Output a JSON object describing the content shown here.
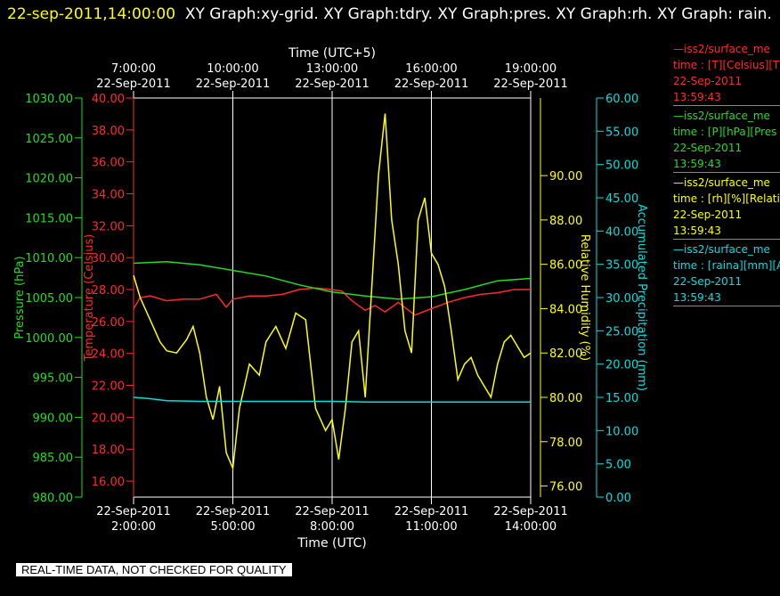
{
  "header": {
    "timestamp": "22-sep-2011,14:00:00",
    "titles": "XY Graph:xy-grid.  XY Graph:tdry.  XY Graph:pres.  XY Graph:rh.  XY Graph: rain."
  },
  "legend": [
    {
      "name": "—iss2/surface_me",
      "line2": "time : [T][Celsius][T",
      "date": "22-Sep-2011",
      "time": "13:59:43",
      "color": "#ff2a2a"
    },
    {
      "name": "—iss2/surface_me",
      "line2": "time : [P][hPa][Pres",
      "date": "22-Sep-2011",
      "time": "13:59:43",
      "color": "#22dd22"
    },
    {
      "name": "—iss2/surface_me",
      "line2": "time : [rh][%][Relati",
      "date": "22-Sep-2011",
      "time": "13:59:43",
      "color": "#ffff00"
    },
    {
      "name": "—iss2/surface_me",
      "line2": "time : [raina][mm][A",
      "date": "22-Sep-2011",
      "time": "13:59:43",
      "color": "#00e0e0"
    }
  ],
  "disclaimer": "REAL-TIME DATA, NOT CHECKED FOR QUALITY",
  "chart_data": {
    "type": "line",
    "top_axis": {
      "label": "Time (UTC+5)",
      "ticks": [
        {
          "time": "7:00:00",
          "date": "22-Sep-2011"
        },
        {
          "time": "10:00:00",
          "date": "22-Sep-2011"
        },
        {
          "time": "13:00:00",
          "date": "22-Sep-2011"
        },
        {
          "time": "16:00:00",
          "date": "22-Sep-2011"
        },
        {
          "time": "19:00:00",
          "date": "22-Sep-2011"
        }
      ]
    },
    "bottom_axis": {
      "label": "Time (UTC)",
      "ticks": [
        {
          "date": "22-Sep-2011",
          "time": "2:00:00"
        },
        {
          "date": "22-Sep-2011",
          "time": "5:00:00"
        },
        {
          "date": "22-Sep-2011",
          "time": "8:00:00"
        },
        {
          "date": "22-Sep-2011",
          "time": "11:00:00"
        },
        {
          "date": "22-Sep-2011",
          "time": "14:00:00"
        }
      ],
      "xlim_hours": [
        2,
        14
      ]
    },
    "axes": {
      "pressure": {
        "label": "Pressure (hPa)",
        "color": "#22dd22",
        "ylim": [
          980,
          1030
        ],
        "ticks": [
          "980.00",
          "985.00",
          "990.00",
          "995.00",
          "1000.00",
          "1005.00",
          "1010.00",
          "1015.00",
          "1020.00",
          "1025.00",
          "1030.00"
        ]
      },
      "temperature": {
        "label": "Temperature (Celsius)",
        "color": "#ff2a2a",
        "ylim": [
          15,
          40
        ],
        "ticks": [
          "16.00",
          "18.00",
          "20.00",
          "22.00",
          "24.00",
          "26.00",
          "28.00",
          "30.00",
          "32.00",
          "34.00",
          "36.00",
          "38.00",
          "40.00"
        ]
      },
      "humidity": {
        "label": "Relative Humidity (%)",
        "color": "#ffff00",
        "ylim": [
          75.5,
          93.5
        ],
        "ticks": [
          "76.00",
          "78.00",
          "80.00",
          "82.00",
          "84.00",
          "86.00",
          "88.00",
          "90.00"
        ]
      },
      "precip": {
        "label": "Accumulated Precipitation (mm)",
        "color": "#00e0e0",
        "ylim": [
          0,
          60
        ],
        "ticks": [
          "0.00",
          "5.00",
          "10.00",
          "15.00",
          "20.00",
          "25.00",
          "30.00",
          "35.00",
          "40.00",
          "45.00",
          "50.00",
          "55.00",
          "60.00"
        ]
      }
    },
    "series": [
      {
        "name": "temperature",
        "axis": "temperature",
        "color": "#ff2a2a",
        "x": [
          2,
          2.2,
          2.5,
          3,
          3.5,
          4,
          4.5,
          4.8,
          5,
          5.5,
          6,
          6.5,
          7,
          7.5,
          8,
          8.3,
          8.6,
          9,
          9.3,
          9.6,
          10,
          10.5,
          11,
          11.5,
          12,
          12.5,
          13,
          13.5,
          14
        ],
        "y": [
          26.8,
          27.5,
          27.6,
          27.3,
          27.4,
          27.4,
          27.7,
          26.9,
          27.4,
          27.6,
          27.6,
          27.7,
          28.0,
          28.1,
          28.0,
          27.9,
          27.3,
          26.7,
          27.0,
          26.6,
          27.2,
          26.4,
          26.8,
          27.2,
          27.5,
          27.7,
          27.8,
          28.0,
          28.0
        ]
      },
      {
        "name": "pressure",
        "axis": "pressure",
        "color": "#22dd22",
        "x": [
          2,
          3,
          4,
          5,
          6,
          7,
          8,
          9,
          10,
          11,
          12,
          13,
          14
        ],
        "y": [
          1009.3,
          1009.5,
          1009.1,
          1008.4,
          1007.7,
          1006.6,
          1005.7,
          1005.2,
          1004.8,
          1005.1,
          1006.0,
          1007.1,
          1007.4
        ]
      },
      {
        "name": "humidity",
        "axis": "humidity",
        "color": "#ffff00",
        "x": [
          2,
          2.2,
          2.5,
          2.8,
          3,
          3.3,
          3.6,
          3.8,
          4,
          4.2,
          4.4,
          4.6,
          4.8,
          5,
          5.2,
          5.5,
          5.8,
          6,
          6.3,
          6.6,
          6.9,
          7.2,
          7.5,
          7.8,
          8,
          8.2,
          8.4,
          8.6,
          8.8,
          9,
          9.2,
          9.4,
          9.6,
          9.8,
          10,
          10.2,
          10.4,
          10.6,
          10.8,
          11,
          11.2,
          11.4,
          11.6,
          11.8,
          12,
          12.2,
          12.4,
          12.6,
          12.8,
          13,
          13.2,
          13.4,
          13.6,
          13.8,
          14
        ],
        "y": [
          85.5,
          84.5,
          83.5,
          82.5,
          82.1,
          82.0,
          82.6,
          83.2,
          82.0,
          80.0,
          79.0,
          80.5,
          77.5,
          76.8,
          79.5,
          81.5,
          81.0,
          82.5,
          83.2,
          82.2,
          83.8,
          83.5,
          79.5,
          78.5,
          79.0,
          77.2,
          79.5,
          82.5,
          83.0,
          80.0,
          85.0,
          90.0,
          92.8,
          88.0,
          86.0,
          83.0,
          82.0,
          88.0,
          89.0,
          86.5,
          86.0,
          85.0,
          83.0,
          80.8,
          81.5,
          81.8,
          81.0,
          80.5,
          80.0,
          81.5,
          82.5,
          82.8,
          82.3,
          81.8,
          82.0
        ]
      },
      {
        "name": "precipitation",
        "axis": "precip",
        "color": "#00e0e0",
        "x": [
          2,
          2.5,
          3,
          4,
          5,
          6,
          7,
          8,
          9,
          10,
          11,
          12,
          13,
          14
        ],
        "y": [
          15.0,
          14.8,
          14.5,
          14.4,
          14.4,
          14.4,
          14.4,
          14.4,
          14.3,
          14.3,
          14.3,
          14.3,
          14.3,
          14.3
        ]
      }
    ],
    "grid": true
  }
}
